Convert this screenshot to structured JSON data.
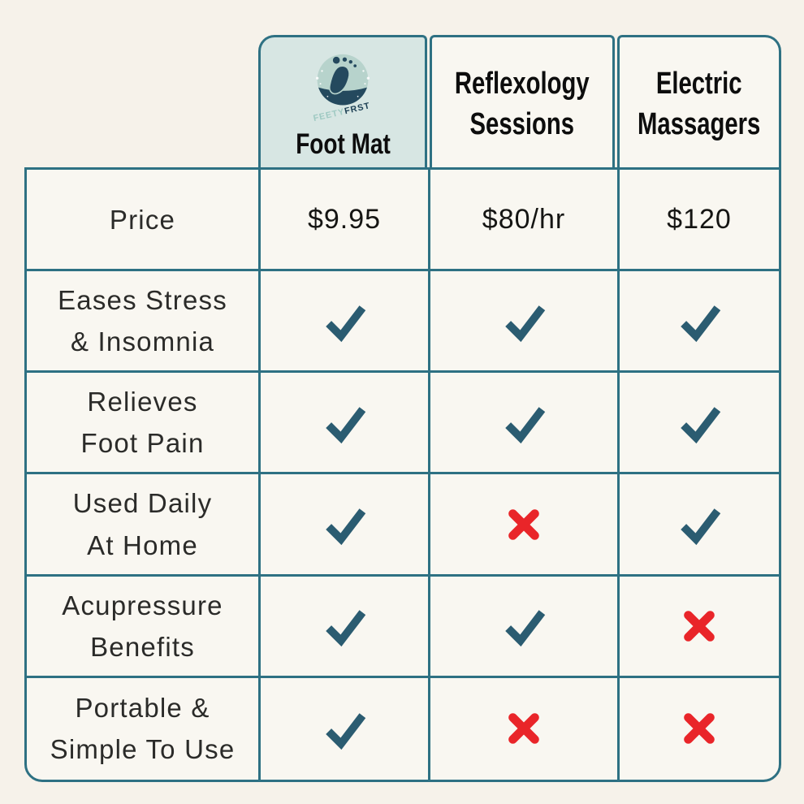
{
  "chart_data": {
    "type": "table",
    "columns": [
      {
        "id": "foot-mat",
        "label": "Foot Mat",
        "brand": {
          "word_primary": "FEETY",
          "word_secondary": "FRST"
        }
      },
      {
        "id": "reflexology-sessions",
        "label": "Reflexology Sessions"
      },
      {
        "id": "electric-massagers",
        "label": "Electric Massagers"
      }
    ],
    "rows": [
      {
        "label_lines": [
          "Price"
        ],
        "values": [
          "$9.95",
          "$80/hr",
          "$120"
        ]
      },
      {
        "label_lines": [
          "Eases Stress",
          "& Insomnia"
        ],
        "values": [
          "check",
          "check",
          "check"
        ]
      },
      {
        "label_lines": [
          "Relieves",
          "Foot Pain"
        ],
        "values": [
          "check",
          "check",
          "check"
        ]
      },
      {
        "label_lines": [
          "Used Daily",
          "At Home"
        ],
        "values": [
          "check",
          "cross",
          "check"
        ]
      },
      {
        "label_lines": [
          "Acupressure",
          "Benefits"
        ],
        "values": [
          "check",
          "check",
          "cross"
        ]
      },
      {
        "label_lines": [
          "Portable &",
          "Simple To Use"
        ],
        "values": [
          "check",
          "cross",
          "cross"
        ]
      }
    ],
    "icons": {
      "check": {
        "name": "check-icon",
        "glyph": "✓"
      },
      "cross": {
        "name": "cross-icon",
        "glyph": "✕"
      },
      "logo": {
        "name": "feetyfirst-logo",
        "description": "footprint-in-circle"
      }
    },
    "colors": {
      "page_bg": "#f6f2ea",
      "cell_bg": "#f9f7f1",
      "header_highlight_bg": "#d7e6e3",
      "border": "#2e7183",
      "check": "#2b5c71",
      "cross": "#e92529",
      "heading_text": "#0d0d0d",
      "body_text": "#2b2b29",
      "logo_circle": "#b7d3cc",
      "logo_dark": "#24495e",
      "logo_word_primary": "#9ec9c2",
      "logo_word_secondary": "#1d4054"
    }
  }
}
